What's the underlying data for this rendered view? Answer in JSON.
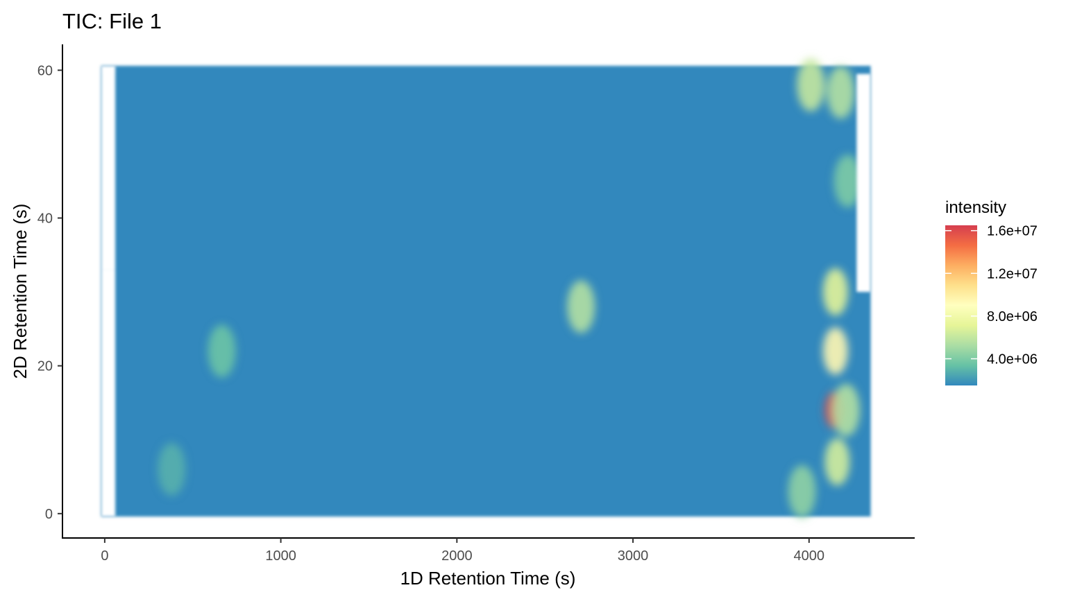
{
  "chart_data": {
    "type": "heatmap",
    "title": "TIC: File 1",
    "xlabel": "1D Retention Time (s)",
    "ylabel": "2D Retention Time (s)",
    "xlim": [
      -240,
      4600
    ],
    "ylim": [
      -3.3,
      63.5
    ],
    "x_ticks": [
      0,
      1000,
      2000,
      3000,
      4000
    ],
    "y_ticks": [
      0,
      20,
      40,
      60
    ],
    "x_tick_labels": [
      "0",
      "1000",
      "2000",
      "3000",
      "4000"
    ],
    "y_tick_labels": [
      "0",
      "20",
      "40",
      "60"
    ],
    "data_extent": {
      "x": [
        -20,
        4350
      ],
      "y": [
        -0.4,
        60.6
      ]
    },
    "missing_regions": [
      {
        "x": [
          -20,
          60
        ],
        "y": [
          33,
          60.6
        ]
      },
      {
        "x": [
          60,
          60
        ],
        "y": [
          59.5,
          60.6
        ]
      },
      {
        "x": [
          -20,
          60
        ],
        "y": [
          -0.4,
          33
        ]
      },
      {
        "x": [
          4270,
          4350
        ],
        "y": [
          30,
          59.5
        ]
      }
    ],
    "background_intensity": 1500000,
    "features": [
      {
        "x": 4145,
        "y": 14,
        "intensity": 16000000
      },
      {
        "x": 4150,
        "y": 22,
        "intensity": 9500000
      },
      {
        "x": 4150,
        "y": 30,
        "intensity": 7000000
      },
      {
        "x": 4160,
        "y": 7,
        "intensity": 6500000
      },
      {
        "x": 4210,
        "y": 14,
        "intensity": 5500000
      },
      {
        "x": 4010,
        "y": 58,
        "intensity": 6000000
      },
      {
        "x": 4180,
        "y": 57,
        "intensity": 5500000
      },
      {
        "x": 3960,
        "y": 3,
        "intensity": 4500000
      },
      {
        "x": 4220,
        "y": 45,
        "intensity": 4000000
      },
      {
        "x": 2705,
        "y": 28,
        "intensity": 5500000
      },
      {
        "x": 665,
        "y": 22,
        "intensity": 3500000
      },
      {
        "x": 380,
        "y": 6,
        "intensity": 2800000
      }
    ],
    "legend": {
      "title": "intensity",
      "placement": "right",
      "min": 1500000,
      "max": 16500000,
      "ticks": [
        4000000,
        8000000,
        12000000,
        16000000
      ],
      "tick_labels": [
        "4.0e+06",
        "8.0e+06",
        "1.2e+07",
        "1.6e+07"
      ],
      "colors": [
        "#3288bd",
        "#66c2a5",
        "#abdda4",
        "#e6f598",
        "#ffffbf",
        "#fee08b",
        "#fdae61",
        "#f46d43",
        "#d53e4f"
      ]
    }
  }
}
